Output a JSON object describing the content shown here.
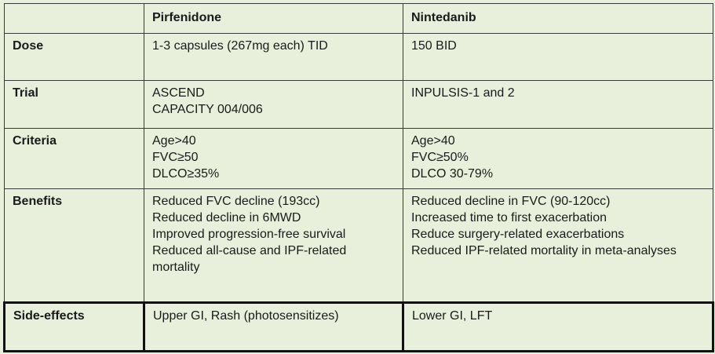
{
  "table": {
    "headers": [
      "",
      "Pirfenidone",
      "Nintedanib"
    ],
    "rows": [
      {
        "label": "Dose",
        "pirfenidone": [
          "1-3 capsules (267mg each) TID"
        ],
        "nintedanib": [
          "150 BID"
        ]
      },
      {
        "label": "Trial",
        "pirfenidone": [
          "ASCEND",
          "CAPACITY 004/006"
        ],
        "nintedanib": [
          "INPULSIS-1 and 2"
        ]
      },
      {
        "label": "Criteria",
        "pirfenidone": [
          "Age>40",
          "FVC≥50",
          "DLCO≥35%"
        ],
        "nintedanib": [
          "Age>40",
          "FVC≥50%",
          "DLCO 30-79%"
        ]
      },
      {
        "label": "Benefits",
        "pirfenidone": [
          "Reduced FVC decline (193cc)",
          "Reduced decline in 6MWD",
          "Improved progression-free survival",
          "Reduced all-cause and IPF-related mortality"
        ],
        "nintedanib": [
          "Reduced decline in FVC (90-120cc)",
          "Increased time to first exacerbation",
          "Reduce surgery-related exacerbations",
          "Reduced IPF-related mortality in meta-analyses"
        ]
      },
      {
        "label": "Side-effects",
        "pirfenidone": [
          "Upper GI, Rash (photosensitizes)"
        ],
        "nintedanib": [
          "Lower GI, LFT"
        ]
      }
    ]
  }
}
